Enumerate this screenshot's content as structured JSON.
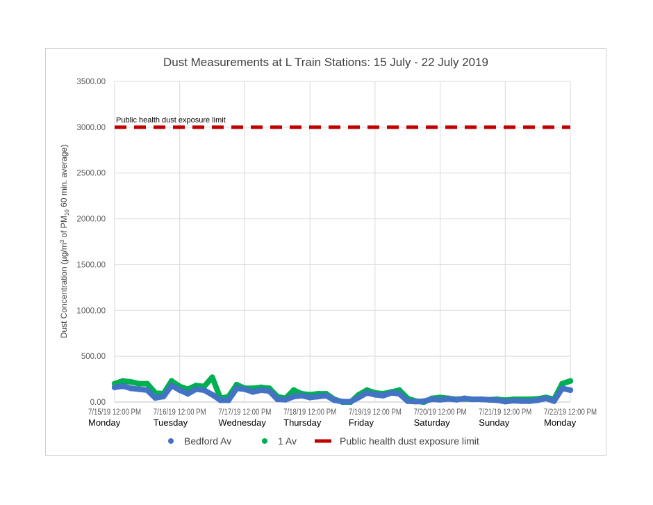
{
  "chart_data": {
    "type": "scatter",
    "title": "Dust Measurements at L Train Stations: 15 July - 22 July 2019",
    "ylabel_parts": [
      "Dust Concentration (µg/m",
      "3",
      " of PM",
      "10",
      " 60 min. average)"
    ],
    "ylim": [
      0,
      3500
    ],
    "yticks": [
      "0.00",
      "500.00",
      "1000.00",
      "1500.00",
      "2000.00",
      "2500.00",
      "3000.00",
      "3500.00"
    ],
    "xlim": [
      "2019-07-15 12:00",
      "2019-07-22 12:00"
    ],
    "xticks": [
      "7/15/19 12:00 PM",
      "7/16/19 12:00 PM",
      "7/17/19 12:00 PM",
      "7/18/19 12:00 PM",
      "7/19/19 12:00 PM",
      "7/20/19 12:00 PM",
      "7/21/19 12:00 PM",
      "7/22/19 12:00 PM"
    ],
    "day_labels": [
      "Monday",
      "Tuesday",
      "Wednesday",
      "Thursday",
      "Friday",
      "Saturday",
      "Sunday",
      "Monday"
    ],
    "grid": true,
    "legend_position": "bottom",
    "x": [
      "2019-07-15 12:00",
      "2019-07-15 15:00",
      "2019-07-15 18:00",
      "2019-07-15 21:00",
      "2019-07-16 00:00",
      "2019-07-16 03:00",
      "2019-07-16 06:00",
      "2019-07-16 09:00",
      "2019-07-16 12:00",
      "2019-07-16 15:00",
      "2019-07-16 18:00",
      "2019-07-16 21:00",
      "2019-07-17 00:00",
      "2019-07-17 03:00",
      "2019-07-17 06:00",
      "2019-07-17 09:00",
      "2019-07-17 12:00",
      "2019-07-17 15:00",
      "2019-07-17 18:00",
      "2019-07-17 21:00",
      "2019-07-18 00:00",
      "2019-07-18 03:00",
      "2019-07-18 06:00",
      "2019-07-18 09:00",
      "2019-07-18 12:00",
      "2019-07-18 15:00",
      "2019-07-18 18:00",
      "2019-07-18 21:00",
      "2019-07-19 00:00",
      "2019-07-19 03:00",
      "2019-07-19 06:00",
      "2019-07-19 09:00",
      "2019-07-19 12:00",
      "2019-07-19 15:00",
      "2019-07-19 18:00",
      "2019-07-19 21:00",
      "2019-07-20 00:00",
      "2019-07-20 03:00",
      "2019-07-20 06:00",
      "2019-07-20 09:00",
      "2019-07-20 12:00",
      "2019-07-20 15:00",
      "2019-07-20 18:00",
      "2019-07-20 21:00",
      "2019-07-21 00:00",
      "2019-07-21 03:00",
      "2019-07-21 06:00",
      "2019-07-21 09:00",
      "2019-07-21 12:00",
      "2019-07-21 15:00",
      "2019-07-21 18:00",
      "2019-07-21 21:00",
      "2019-07-22 00:00",
      "2019-07-22 03:00",
      "2019-07-22 06:00",
      "2019-07-22 09:00",
      "2019-07-22 12:00"
    ],
    "series": [
      {
        "name": "Bedford Av",
        "color": "#4472c4",
        "values": [
          160,
          175,
          150,
          140,
          130,
          45,
          60,
          180,
          130,
          90,
          140,
          130,
          80,
          20,
          20,
          150,
          140,
          110,
          130,
          120,
          30,
          25,
          60,
          70,
          50,
          60,
          70,
          20,
          5,
          5,
          50,
          100,
          80,
          70,
          100,
          90,
          10,
          5,
          10,
          30,
          25,
          35,
          25,
          40,
          30,
          30,
          25,
          20,
          5,
          15,
          10,
          10,
          20,
          40,
          10,
          150,
          130
        ]
      },
      {
        "name": "1 Av",
        "color": "#00b050",
        "values": [
          200,
          230,
          220,
          200,
          200,
          100,
          90,
          230,
          170,
          140,
          180,
          170,
          270,
          40,
          60,
          190,
          150,
          150,
          160,
          150,
          60,
          40,
          130,
          90,
          80,
          90,
          90,
          30,
          0,
          0,
          80,
          130,
          100,
          90,
          110,
          130,
          40,
          10,
          0,
          40,
          50,
          40,
          30,
          35,
          30,
          30,
          25,
          30,
          20,
          30,
          30,
          30,
          35,
          50,
          30,
          200,
          230
        ]
      }
    ],
    "threshold": {
      "name": "Public health dust exposure limit",
      "value": 3000,
      "color": "#c00000",
      "annotation": "Public health dust exposure limit"
    }
  }
}
